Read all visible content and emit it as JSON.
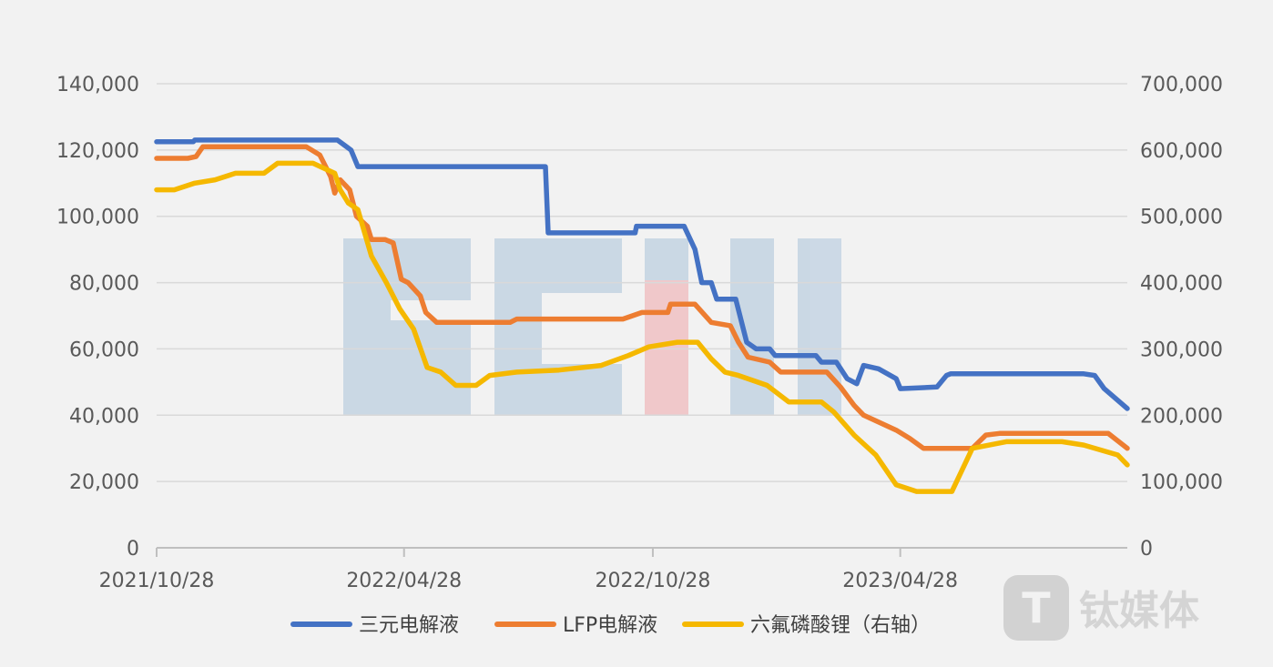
{
  "chart_data": {
    "type": "line",
    "title": "",
    "x_ticks": [
      "2021/10/28",
      "2022/04/28",
      "2022/10/28",
      "2023/04/28"
    ],
    "x_range": [
      "2021/10/28",
      "2023/10/12"
    ],
    "y_left": {
      "min": 0,
      "max": 140000,
      "ticks": [
        "0",
        "20,000",
        "40,000",
        "60,000",
        "80,000",
        "100,000",
        "120,000",
        "140,000"
      ]
    },
    "y_right": {
      "min": 0,
      "max": 700000,
      "ticks": [
        "0",
        "100,000",
        "200,000",
        "300,000",
        "400,000",
        "500,000",
        "600,000",
        "700,000"
      ]
    },
    "grid": true,
    "legend_position": "bottom",
    "series": [
      {
        "name": "三元电解液",
        "axis": "left",
        "color": "#4472c4",
        "points": [
          [
            "2021/10/28",
            122500
          ],
          [
            "2021/11/24",
            122500
          ],
          [
            "2021/11/25",
            123000
          ],
          [
            "2022/02/18",
            123000
          ],
          [
            "2022/03/10",
            123000
          ],
          [
            "2022/03/20",
            120000
          ],
          [
            "2022/03/25",
            115000
          ],
          [
            "2022/08/10",
            115000
          ],
          [
            "2022/08/12",
            95000
          ],
          [
            "2022/09/25",
            95000
          ],
          [
            "2022/10/15",
            95000
          ],
          [
            "2022/10/16",
            97000
          ],
          [
            "2022/11/20",
            97000
          ],
          [
            "2022/11/28",
            90000
          ],
          [
            "2022/12/03",
            80000
          ],
          [
            "2022/12/10",
            80000
          ],
          [
            "2022/12/14",
            75000
          ],
          [
            "2022/12/28",
            75000
          ],
          [
            "2023/01/05",
            62000
          ],
          [
            "2023/01/12",
            60000
          ],
          [
            "2023/01/22",
            60000
          ],
          [
            "2023/01/26",
            58000
          ],
          [
            "2023/02/25",
            58000
          ],
          [
            "2023/03/01",
            56000
          ],
          [
            "2023/03/12",
            56000
          ],
          [
            "2023/03/20",
            51000
          ],
          [
            "2023/03/27",
            49500
          ],
          [
            "2023/04/01",
            55000
          ],
          [
            "2023/04/12",
            54000
          ],
          [
            "2023/04/25",
            51000
          ],
          [
            "2023/04/28",
            48000
          ],
          [
            "2023/05/25",
            48500
          ],
          [
            "2023/06/01",
            52000
          ],
          [
            "2023/06/04",
            52500
          ],
          [
            "2023/09/10",
            52500
          ],
          [
            "2023/09/18",
            52000
          ],
          [
            "2023/09/25",
            48000
          ],
          [
            "2023/10/12",
            42000
          ]
        ]
      },
      {
        "name": "LFP电解液",
        "axis": "left",
        "color": "#ed7d31",
        "points": [
          [
            "2021/10/28",
            117500
          ],
          [
            "2021/11/20",
            117500
          ],
          [
            "2021/11/26",
            118000
          ],
          [
            "2021/12/01",
            121000
          ],
          [
            "2022/02/15",
            121000
          ],
          [
            "2022/02/25",
            118500
          ],
          [
            "2022/03/05",
            112000
          ],
          [
            "2022/03/08",
            107000
          ],
          [
            "2022/03/12",
            111000
          ],
          [
            "2022/03/19",
            108000
          ],
          [
            "2022/03/24",
            100000
          ],
          [
            "2022/04/01",
            97000
          ],
          [
            "2022/04/04",
            93000
          ],
          [
            "2022/04/14",
            93000
          ],
          [
            "2022/04/20",
            92000
          ],
          [
            "2022/04/26",
            81000
          ],
          [
            "2022/05/01",
            80000
          ],
          [
            "2022/05/10",
            76000
          ],
          [
            "2022/05/14",
            71000
          ],
          [
            "2022/05/22",
            68000
          ],
          [
            "2022/07/15",
            68000
          ],
          [
            "2022/07/20",
            69000
          ],
          [
            "2022/10/06",
            69000
          ],
          [
            "2022/10/20",
            71000
          ],
          [
            "2022/11/08",
            71000
          ],
          [
            "2022/11/10",
            73500
          ],
          [
            "2022/11/28",
            73500
          ],
          [
            "2022/12/10",
            68000
          ],
          [
            "2022/12/24",
            67000
          ],
          [
            "2022/12/30",
            62000
          ],
          [
            "2023/01/06",
            57500
          ],
          [
            "2023/01/22",
            56000
          ],
          [
            "2023/01/30",
            53000
          ],
          [
            "2023/03/05",
            53000
          ],
          [
            "2023/03/15",
            48500
          ],
          [
            "2023/03/25",
            43000
          ],
          [
            "2023/04/01",
            40000
          ],
          [
            "2023/04/25",
            35500
          ],
          [
            "2023/05/05",
            33000
          ],
          [
            "2023/05/15",
            30000
          ],
          [
            "2023/06/20",
            30000
          ],
          [
            "2023/06/30",
            34000
          ],
          [
            "2023/07/10",
            34500
          ],
          [
            "2023/09/28",
            34500
          ],
          [
            "2023/10/12",
            30000
          ]
        ]
      },
      {
        "name": "六氟磷酸锂（右轴）",
        "axis": "right",
        "color": "#f5b800",
        "points": [
          [
            "2021/10/28",
            540000
          ],
          [
            "2021/11/10",
            540000
          ],
          [
            "2021/11/25",
            550000
          ],
          [
            "2021/12/10",
            555000
          ],
          [
            "2021/12/25",
            565000
          ],
          [
            "2022/01/15",
            565000
          ],
          [
            "2022/01/25",
            580000
          ],
          [
            "2022/02/20",
            580000
          ],
          [
            "2022/03/08",
            565000
          ],
          [
            "2022/03/12",
            540000
          ],
          [
            "2022/03/18",
            520000
          ],
          [
            "2022/03/25",
            510000
          ],
          [
            "2022/04/04",
            440000
          ],
          [
            "2022/04/15",
            400000
          ],
          [
            "2022/04/25",
            360000
          ],
          [
            "2022/05/05",
            330000
          ],
          [
            "2022/05/15",
            272000
          ],
          [
            "2022/05/25",
            265000
          ],
          [
            "2022/06/05",
            245000
          ],
          [
            "2022/06/20",
            245000
          ],
          [
            "2022/06/30",
            260000
          ],
          [
            "2022/07/20",
            265000
          ],
          [
            "2022/08/20",
            268000
          ],
          [
            "2022/09/20",
            275000
          ],
          [
            "2022/10/10",
            290000
          ],
          [
            "2022/10/25",
            303000
          ],
          [
            "2022/11/15",
            310000
          ],
          [
            "2022/11/30",
            310000
          ],
          [
            "2022/12/10",
            285000
          ],
          [
            "2022/12/20",
            265000
          ],
          [
            "2022/12/30",
            260000
          ],
          [
            "2023/01/20",
            245000
          ],
          [
            "2023/02/05",
            220000
          ],
          [
            "2023/03/01",
            220000
          ],
          [
            "2023/03/10",
            205000
          ],
          [
            "2023/03/25",
            170000
          ],
          [
            "2023/04/10",
            140000
          ],
          [
            "2023/04/25",
            95000
          ],
          [
            "2023/05/10",
            85000
          ],
          [
            "2023/06/05",
            85000
          ],
          [
            "2023/06/20",
            150000
          ],
          [
            "2023/07/15",
            160000
          ],
          [
            "2023/08/25",
            160000
          ],
          [
            "2023/09/10",
            155000
          ],
          [
            "2023/10/05",
            140000
          ],
          [
            "2023/10/12",
            125000
          ]
        ]
      }
    ]
  },
  "watermarks": {
    "background_letters": "SCMI",
    "brand": "钛媒体"
  }
}
